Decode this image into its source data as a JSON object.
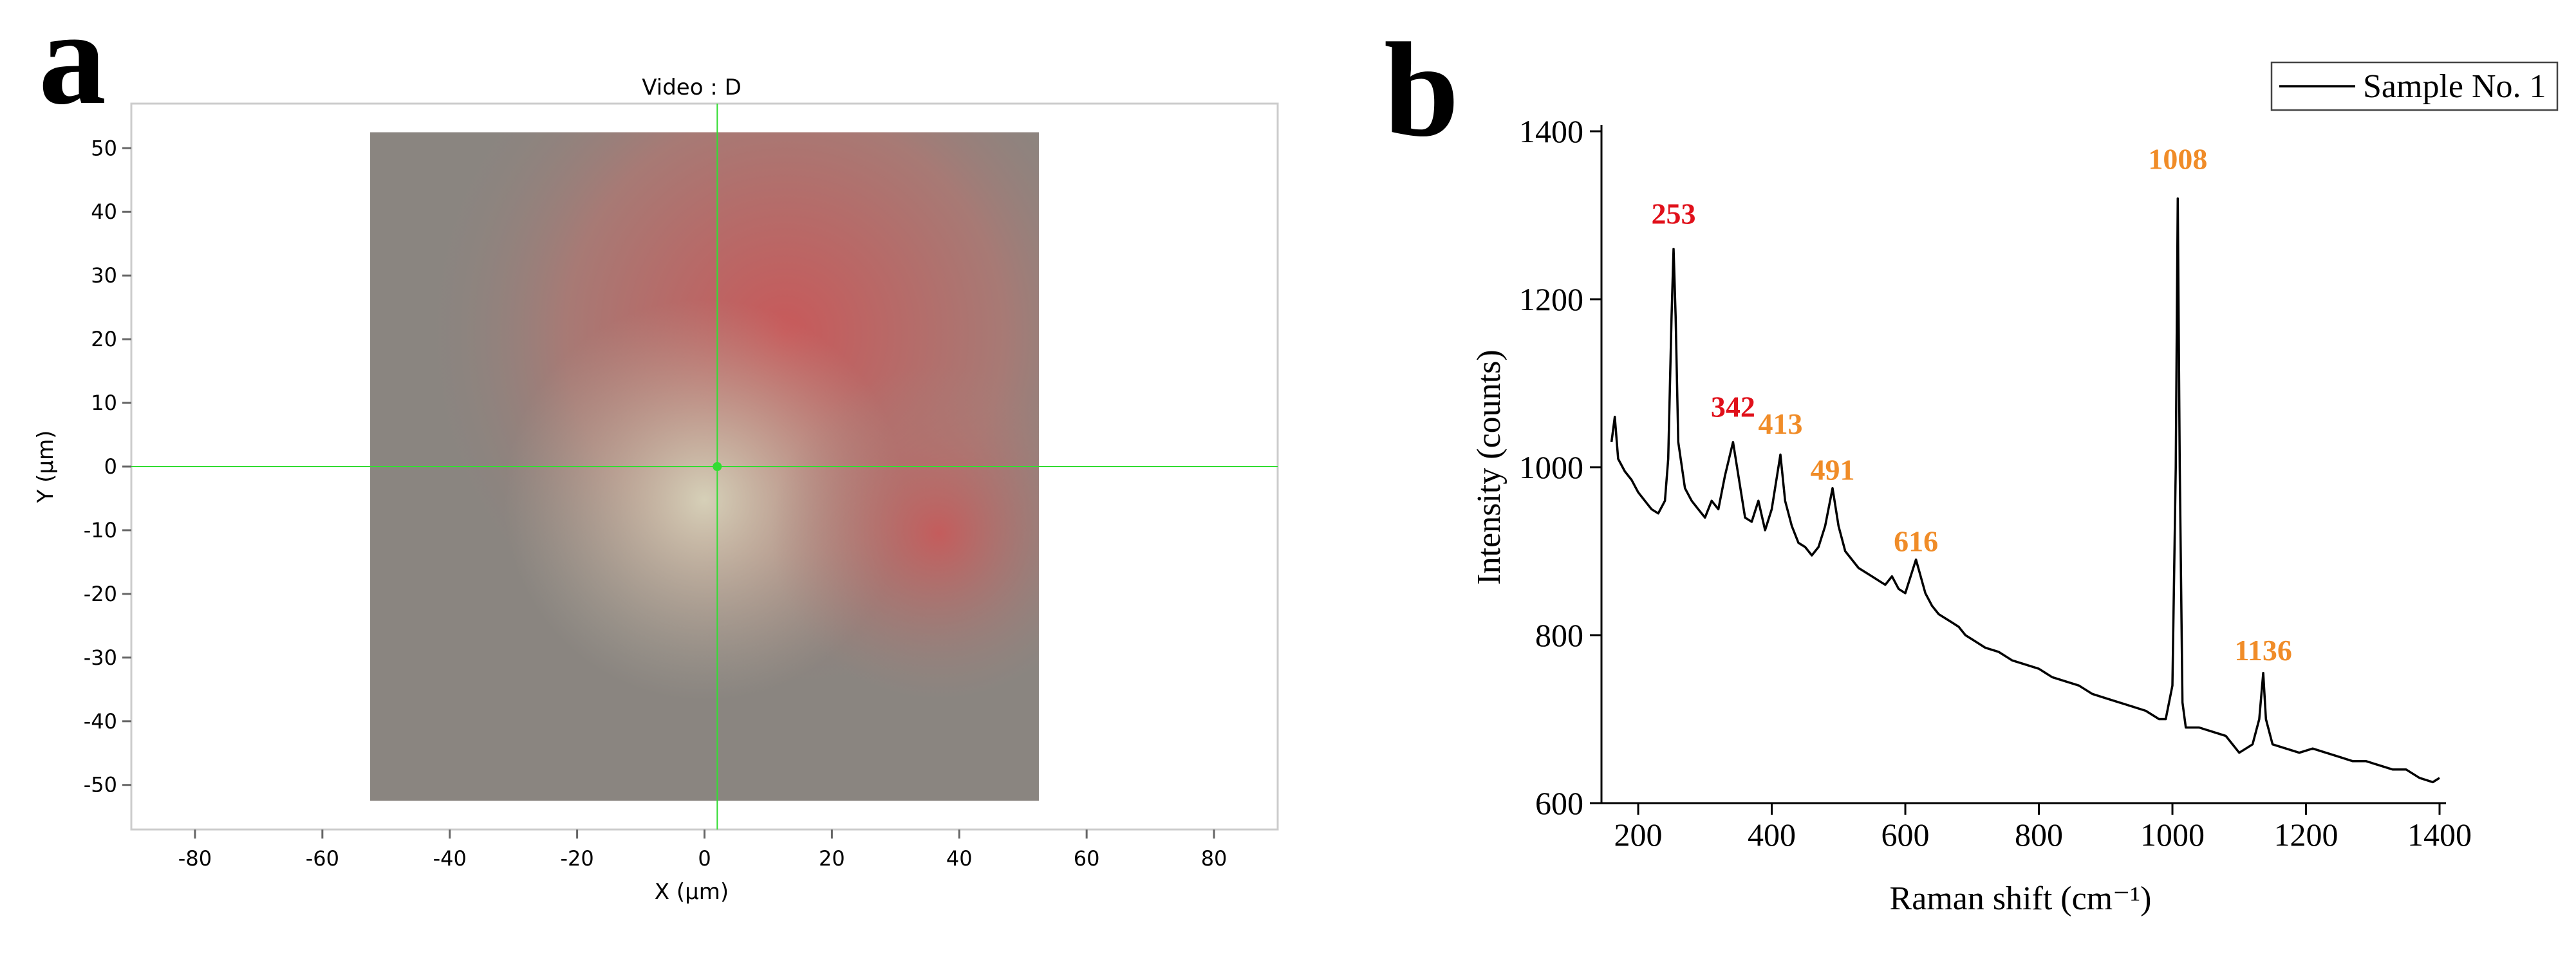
{
  "panel_labels": [
    "a",
    "b"
  ],
  "chart_data": [
    {
      "type": "image",
      "title": "Video : D",
      "xlabel": "X (µm)",
      "ylabel": "Y (µm)",
      "xlim": [
        -90,
        90
      ],
      "ylim": [
        -57,
        57
      ],
      "xticks": [
        -80,
        -60,
        -40,
        -20,
        0,
        20,
        40,
        60,
        80
      ],
      "yticks": [
        -50,
        -40,
        -30,
        -20,
        -10,
        0,
        10,
        20,
        30,
        40,
        50
      ],
      "extent": [
        -52.5,
        52.5,
        -52.5,
        52.5
      ],
      "crosshair": {
        "x": 2,
        "y": 0,
        "color": "#33dd33"
      }
    },
    {
      "type": "line",
      "xlabel": "Raman shift (cm⁻¹)",
      "ylabel": "Intensity (counts)",
      "xlim": [
        145,
        1400
      ],
      "ylim": [
        600,
        1400
      ],
      "xticks": [
        200,
        400,
        600,
        800,
        1000,
        1200,
        1400
      ],
      "yticks": [
        600,
        800,
        1000,
        1200,
        1400
      ],
      "legend": "upper right",
      "x": [
        160,
        165,
        170,
        180,
        190,
        200,
        210,
        220,
        230,
        240,
        245,
        250,
        253,
        256,
        260,
        270,
        280,
        290,
        300,
        310,
        320,
        330,
        342,
        350,
        360,
        370,
        380,
        390,
        400,
        413,
        420,
        430,
        440,
        450,
        460,
        470,
        480,
        491,
        500,
        510,
        520,
        530,
        540,
        550,
        560,
        570,
        580,
        590,
        600,
        616,
        630,
        640,
        650,
        660,
        670,
        680,
        690,
        700,
        720,
        740,
        760,
        780,
        800,
        820,
        840,
        860,
        880,
        900,
        920,
        940,
        960,
        980,
        990,
        1000,
        1005,
        1008,
        1011,
        1015,
        1020,
        1040,
        1060,
        1080,
        1100,
        1120,
        1130,
        1136,
        1140,
        1150,
        1170,
        1190,
        1210,
        1230,
        1250,
        1270,
        1290,
        1310,
        1330,
        1350,
        1370,
        1390,
        1400
      ],
      "series": [
        {
          "name": "Sample No. 1",
          "color": "#000000",
          "values": [
            1030,
            1060,
            1010,
            995,
            985,
            970,
            960,
            950,
            945,
            960,
            1010,
            1180,
            1260,
            1180,
            1030,
            975,
            960,
            950,
            940,
            960,
            950,
            990,
            1030,
            990,
            940,
            935,
            960,
            925,
            950,
            1015,
            960,
            930,
            910,
            905,
            895,
            905,
            930,
            975,
            930,
            900,
            890,
            880,
            875,
            870,
            865,
            860,
            870,
            855,
            850,
            890,
            850,
            835,
            825,
            820,
            815,
            810,
            800,
            795,
            785,
            780,
            770,
            765,
            760,
            750,
            745,
            740,
            730,
            725,
            720,
            715,
            710,
            700,
            700,
            740,
            1000,
            1320,
            1000,
            720,
            690,
            690,
            685,
            680,
            660,
            670,
            700,
            755,
            700,
            670,
            665,
            660,
            665,
            660,
            655,
            650,
            650,
            645,
            640,
            640,
            630,
            625,
            630
          ]
        }
      ],
      "annotations": [
        {
          "text": "253",
          "x": 253,
          "y": 1290,
          "color": "#e0101a"
        },
        {
          "text": "342",
          "x": 342,
          "y": 1060,
          "color": "#e0101a"
        },
        {
          "text": "413",
          "x": 413,
          "y": 1040,
          "color": "#f08c28"
        },
        {
          "text": "491",
          "x": 491,
          "y": 985,
          "color": "#f08c28"
        },
        {
          "text": "616",
          "x": 616,
          "y": 900,
          "color": "#f08c28"
        },
        {
          "text": "1008",
          "x": 1008,
          "y": 1355,
          "color": "#f08c28"
        },
        {
          "text": "1136",
          "x": 1136,
          "y": 770,
          "color": "#f08c28"
        }
      ]
    }
  ]
}
